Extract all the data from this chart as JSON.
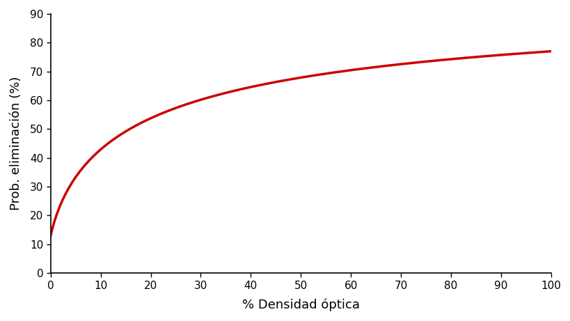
{
  "xlabel": "% Densidad óptica",
  "ylabel": "Prob. eliminación (%)",
  "xlim": [
    0,
    100
  ],
  "ylim": [
    0,
    90
  ],
  "xticks": [
    0,
    10,
    20,
    30,
    40,
    50,
    60,
    70,
    80,
    90,
    100
  ],
  "yticks": [
    0,
    10,
    20,
    30,
    40,
    50,
    60,
    70,
    80,
    90
  ],
  "line_color": "#cc0000",
  "line_width": 2.5,
  "background_color": "#ffffff",
  "logit_a": 1.9459,
  "logit_b": 0.8109,
  "xlabel_fontsize": 13,
  "ylabel_fontsize": 13,
  "tick_fontsize": 11
}
